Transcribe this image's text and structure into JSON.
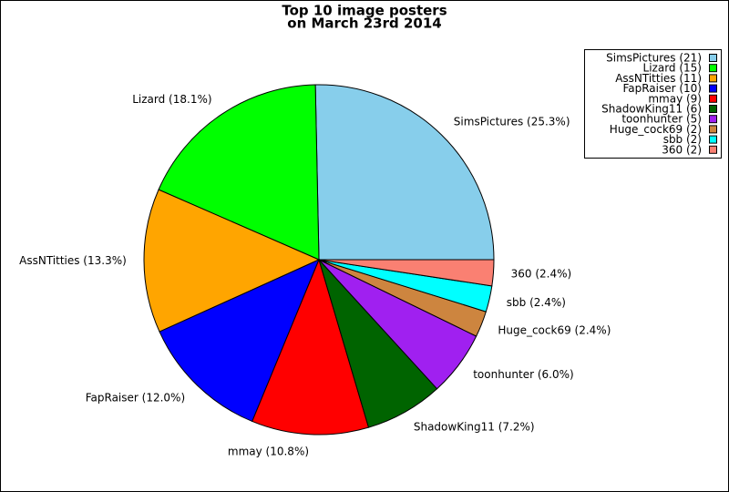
{
  "chart_data": {
    "type": "pie",
    "title": [
      "Top 10 image posters",
      "on March 23rd 2014"
    ],
    "categories": [
      "SimsPictures",
      "Lizard",
      "AssNTitties",
      "FapRaiser",
      "mmay",
      "ShadowKing11",
      "toonhunter",
      "Huge_cock69",
      "sbb",
      "360"
    ],
    "values": [
      25.3,
      18.1,
      13.3,
      12.0,
      10.8,
      7.2,
      6.0,
      2.4,
      2.4,
      2.4
    ],
    "value_labels": [
      "SimsPictures (25.3%)",
      "Lizard (18.1%)",
      "AssNTitties (13.3%)",
      "FapRaiser (12.0%)",
      "mmay (10.8%)",
      "ShadowKing11 (7.2%)",
      "toonhunter (6.0%)",
      "Huge_cock69 (2.4%)",
      "sbb (2.4%)",
      "360 (2.4%)"
    ],
    "legend_labels": [
      "SimsPictures (21)",
      "Lizard (15)",
      "AssNTitties (11)",
      "FapRaiser (10)",
      "mmay (9)",
      "ShadowKing11 (6)",
      "toonhunter (5)",
      "Huge_cock69 (2)",
      "sbb (2)",
      "360 (2)"
    ],
    "colors": [
      "#87ceeb",
      "#00ff00",
      "#ffa500",
      "#0000ff",
      "#ff0000",
      "#006400",
      "#a020f0",
      "#cd853f",
      "#00ffff",
      "#fa8072"
    ],
    "legend": "top-right"
  }
}
